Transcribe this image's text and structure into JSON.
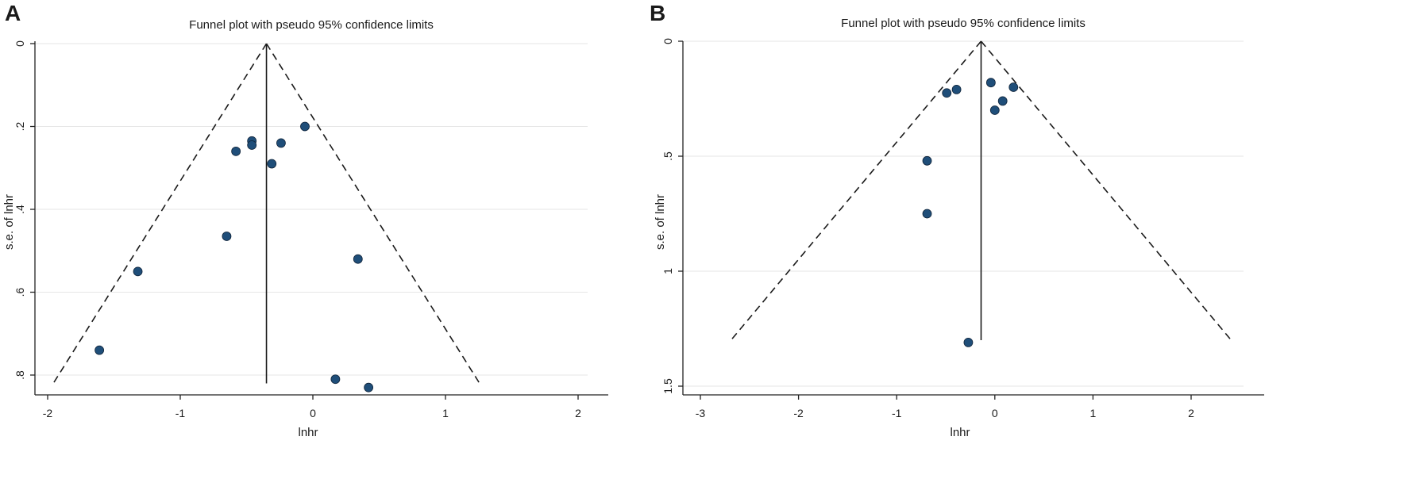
{
  "colors": {
    "point": "#1f4e79",
    "gridline": "#e6e6e6",
    "axis": "#222222"
  },
  "chart_data": [
    {
      "type": "scatter",
      "panel_label": "A",
      "title": "Funnel plot with pseudo 95% confidence limits",
      "xlabel": "lnhr",
      "ylabel": "s.e. of lnhr",
      "xlim": [
        -2,
        2
      ],
      "ylim": [
        0,
        0.82
      ],
      "y_reversed": true,
      "grid": true,
      "x_ticks": [
        -2,
        -1,
        0,
        1,
        2
      ],
      "x_tick_labels": [
        "-2",
        "-1",
        "0",
        "1",
        "2"
      ],
      "y_ticks": [
        0,
        0.2,
        0.4,
        0.6,
        0.8
      ],
      "y_tick_labels": [
        "0",
        ".2",
        ".4",
        ".6",
        ".8"
      ],
      "pooled_estimate": -0.35,
      "pseudo_ci_max_se": 0.82,
      "series": [
        {
          "points": [
            {
              "x": -0.06,
              "y": 0.2
            },
            {
              "x": -0.46,
              "y": 0.235
            },
            {
              "x": -0.46,
              "y": 0.245
            },
            {
              "x": -0.24,
              "y": 0.24
            },
            {
              "x": -0.58,
              "y": 0.26
            },
            {
              "x": -0.31,
              "y": 0.29
            },
            {
              "x": -0.65,
              "y": 0.465
            },
            {
              "x": 0.34,
              "y": 0.52
            },
            {
              "x": -1.32,
              "y": 0.55
            },
            {
              "x": -1.61,
              "y": 0.74
            },
            {
              "x": 0.17,
              "y": 0.81
            },
            {
              "x": 0.42,
              "y": 0.83
            }
          ]
        }
      ]
    },
    {
      "type": "scatter",
      "panel_label": "B",
      "title": "Funnel plot with pseudo 95% confidence limits",
      "xlabel": "lnhr",
      "ylabel": "s.e. of lnhr",
      "xlim": [
        -3,
        2.5
      ],
      "ylim": [
        0,
        1.5
      ],
      "y_reversed": true,
      "grid": true,
      "x_ticks": [
        -3,
        -2,
        -1,
        0,
        1,
        2
      ],
      "x_tick_labels": [
        "-3",
        "-2",
        "-1",
        "0",
        "1",
        "2"
      ],
      "y_ticks": [
        0,
        0.5,
        1,
        1.5
      ],
      "y_tick_labels": [
        "0",
        ".5",
        "1",
        "1.5"
      ],
      "pooled_estimate": -0.14,
      "pseudo_ci_max_se": 1.3,
      "series": [
        {
          "points": [
            {
              "x": -0.04,
              "y": 0.18
            },
            {
              "x": 0.19,
              "y": 0.2
            },
            {
              "x": -0.39,
              "y": 0.21
            },
            {
              "x": -0.49,
              "y": 0.225
            },
            {
              "x": 0.08,
              "y": 0.26
            },
            {
              "x": 0.0,
              "y": 0.3
            },
            {
              "x": -0.69,
              "y": 0.52
            },
            {
              "x": -0.69,
              "y": 0.75
            },
            {
              "x": -0.27,
              "y": 1.31
            }
          ]
        }
      ]
    }
  ]
}
